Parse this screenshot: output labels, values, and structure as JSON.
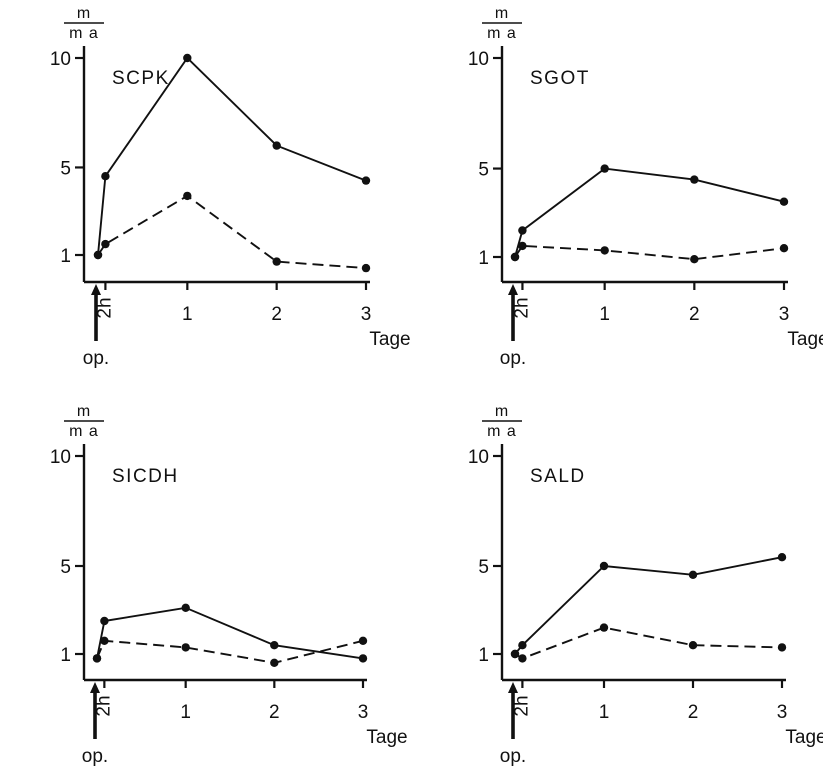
{
  "shared": {
    "y_unit_numerator": "m",
    "y_unit_denominator": "m a",
    "x_unit": "Tage",
    "op_label": "op.",
    "x_tick_labels": [
      "2h",
      "1",
      "2",
      "3"
    ],
    "y_tick_labels": [
      "10",
      "5",
      "1"
    ]
  },
  "chart_data": [
    {
      "type": "line",
      "title": "SCPK",
      "xlabel": "Tage",
      "ylabel": "m / m a",
      "ylim": [
        0,
        10
      ],
      "yticks": [
        1,
        5,
        10
      ],
      "x": [
        0,
        0.083,
        1,
        2,
        3
      ],
      "x_tick_values": [
        0.083,
        1,
        2,
        3
      ],
      "series": [
        {
          "style": "solid",
          "values": [
            1.0,
            4.6,
            10.0,
            6.0,
            4.4
          ]
        },
        {
          "style": "dashed",
          "values": [
            1.0,
            1.5,
            3.7,
            0.7,
            0.4
          ]
        }
      ]
    },
    {
      "type": "line",
      "title": "SGOT",
      "xlabel": "Tage",
      "ylabel": "m / m a",
      "ylim": [
        0,
        10
      ],
      "yticks": [
        1,
        5,
        10
      ],
      "x": [
        0,
        0.083,
        1,
        2,
        3
      ],
      "x_tick_values": [
        0.083,
        1,
        2,
        3
      ],
      "series": [
        {
          "style": "solid",
          "values": [
            1.0,
            2.2,
            5.0,
            4.5,
            3.5
          ]
        },
        {
          "style": "dashed",
          "values": [
            1.0,
            1.5,
            1.3,
            0.9,
            1.4
          ]
        }
      ]
    },
    {
      "type": "line",
      "title": "SICDH",
      "xlabel": "Tage",
      "ylabel": "m / m a",
      "ylim": [
        0,
        10
      ],
      "yticks": [
        1,
        5,
        10
      ],
      "x": [
        0,
        0.083,
        1,
        2,
        3
      ],
      "x_tick_values": [
        0.083,
        1,
        2,
        3
      ],
      "series": [
        {
          "style": "solid",
          "values": [
            0.8,
            2.5,
            3.1,
            1.4,
            0.8
          ]
        },
        {
          "style": "dashed",
          "values": [
            0.8,
            1.6,
            1.3,
            0.6,
            1.6
          ]
        }
      ]
    },
    {
      "type": "line",
      "title": "SALD",
      "xlabel": "Tage",
      "ylabel": "m / m a",
      "ylim": [
        0,
        10
      ],
      "yticks": [
        1,
        5,
        10
      ],
      "x": [
        0,
        0.083,
        1,
        2,
        3
      ],
      "x_tick_values": [
        0.083,
        1,
        2,
        3
      ],
      "series": [
        {
          "style": "solid",
          "values": [
            1.0,
            1.4,
            5.0,
            4.6,
            5.4
          ]
        },
        {
          "style": "dashed",
          "values": [
            1.0,
            0.8,
            2.2,
            1.4,
            1.3
          ]
        }
      ]
    }
  ]
}
